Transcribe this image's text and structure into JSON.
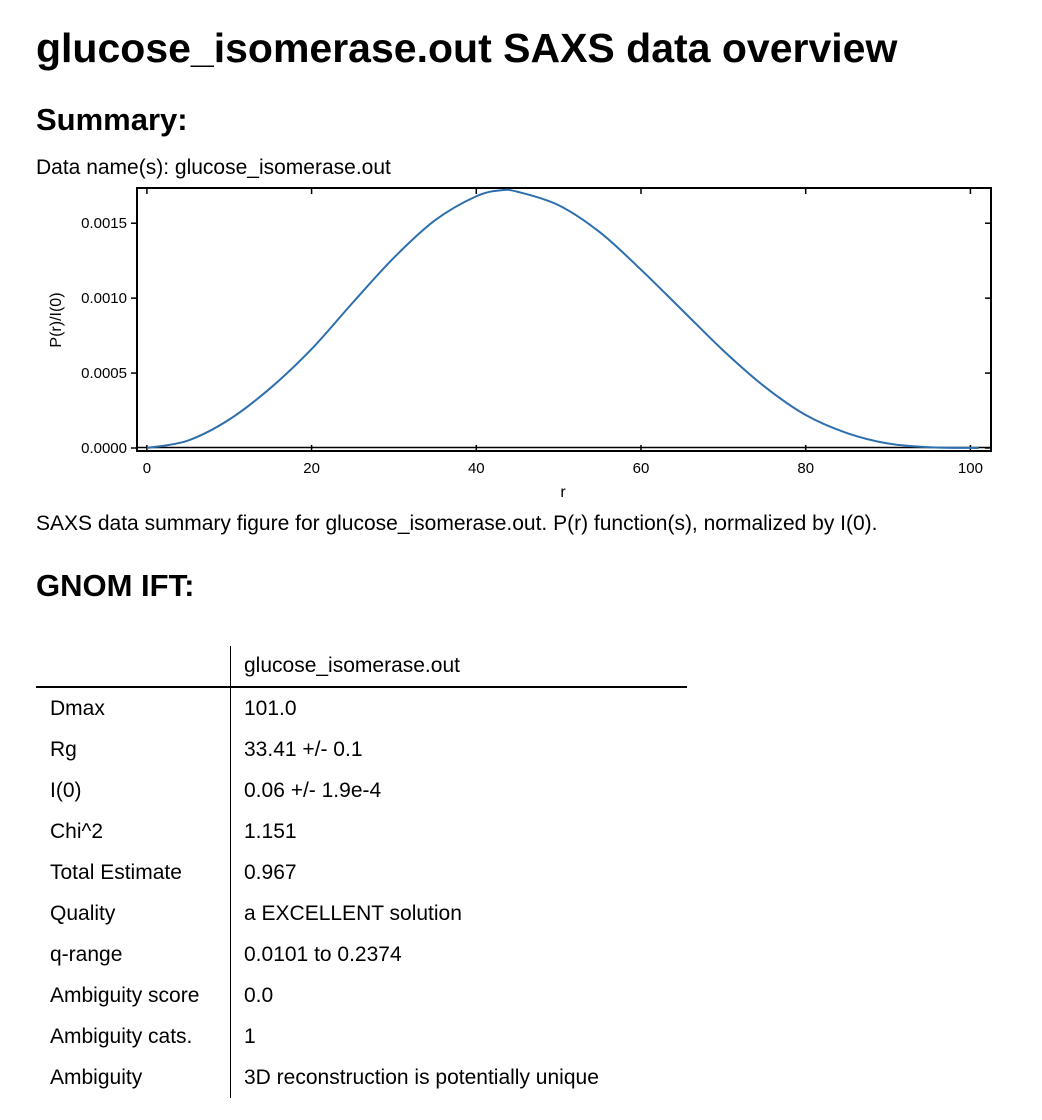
{
  "page": {
    "title": "glucose_isomerase.out SAXS data overview",
    "summary_heading": "Summary:",
    "data_names_label": "Data name(s):",
    "data_names_value": "glucose_isomerase.out",
    "caption": "SAXS data summary figure for glucose_isomerase.out. P(r) function(s), normalized by I(0).",
    "gnom_heading": "GNOM IFT:"
  },
  "chart_data": {
    "type": "line",
    "title": "",
    "xlabel": "r",
    "ylabel": "P(r)/I(0)",
    "xlim": [
      -1.2,
      102.5
    ],
    "ylim": [
      -2e-05,
      0.001735
    ],
    "xticks": [
      0,
      20,
      40,
      60,
      80,
      100
    ],
    "xtick_labels": [
      "0",
      "20",
      "40",
      "60",
      "80",
      "100"
    ],
    "yticks": [
      0,
      0.0005,
      0.001,
      0.0015
    ],
    "ytick_labels": [
      "0.0000",
      "0.0005",
      "0.0010",
      "0.0015"
    ],
    "grid": false,
    "color": "#2d6fae",
    "series": [
      {
        "x": [
          0,
          5,
          10,
          15,
          20,
          25,
          30,
          35,
          40,
          43,
          45,
          50,
          55,
          60,
          65,
          70,
          75,
          80,
          85,
          90,
          95,
          101
        ],
        "y": [
          0,
          5e-05,
          0.00019,
          0.0004,
          0.00066,
          0.00097,
          0.00127,
          0.00152,
          0.00168,
          0.00172,
          0.00171,
          0.00162,
          0.00144,
          0.00119,
          0.00092,
          0.00065,
          0.00041,
          0.00022,
          0.0001,
          3e-05,
          5e-06,
          0
        ]
      }
    ]
  },
  "table": {
    "header": "glucose_isomerase.out",
    "rows": [
      {
        "key": "Dmax",
        "value": "101.0"
      },
      {
        "key": "Rg",
        "value": "33.41 +/- 0.1"
      },
      {
        "key": "I(0)",
        "value": "0.06 +/- 1.9e-4"
      },
      {
        "key": "Chi^2",
        "value": "1.151"
      },
      {
        "key": "Total Estimate",
        "value": "0.967"
      },
      {
        "key": "Quality",
        "value": "a EXCELLENT solution"
      },
      {
        "key": "q-range",
        "value": "0.0101 to 0.2374"
      },
      {
        "key": "Ambiguity score",
        "value": "0.0"
      },
      {
        "key": "Ambiguity cats.",
        "value": "1"
      },
      {
        "key": "Ambiguity",
        "value": "3D reconstruction is potentially unique"
      }
    ]
  }
}
